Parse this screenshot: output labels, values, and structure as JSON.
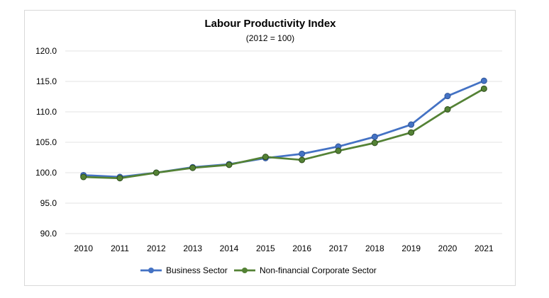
{
  "chart_data": {
    "type": "line",
    "title": "Labour Productivity Index",
    "subtitle": "(2012 = 100)",
    "xlabel": "",
    "ylabel": "",
    "x": [
      "2010",
      "2011",
      "2012",
      "2013",
      "2014",
      "2015",
      "2016",
      "2017",
      "2018",
      "2019",
      "2020",
      "2021"
    ],
    "yticks": [
      "90.0",
      "95.0",
      "100.0",
      "105.0",
      "110.0",
      "115.0",
      "120.0"
    ],
    "ylim": [
      90,
      120
    ],
    "grid": true,
    "legend_position": "bottom",
    "series": [
      {
        "name": "Business Sector",
        "color": "#4472c4",
        "values": [
          99.6,
          99.3,
          100.0,
          100.9,
          101.4,
          102.4,
          103.1,
          104.3,
          105.9,
          107.9,
          112.6,
          115.1
        ]
      },
      {
        "name": "Non-financial Corporate Sector",
        "color": "#548235",
        "values": [
          99.3,
          99.1,
          100.0,
          100.8,
          101.3,
          102.6,
          102.1,
          103.6,
          104.9,
          106.6,
          110.4,
          113.8
        ]
      }
    ]
  }
}
